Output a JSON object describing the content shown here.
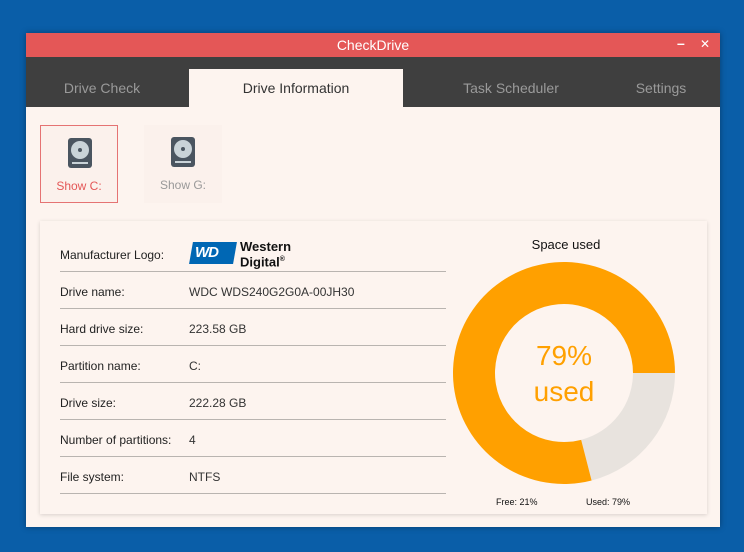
{
  "window": {
    "title": "CheckDrive",
    "minimize_glyph": "–",
    "close_glyph": "✕"
  },
  "tabs": [
    {
      "label": "Drive Check",
      "active": false
    },
    {
      "label": "Drive Information",
      "active": true
    },
    {
      "label": "Task Scheduler",
      "active": false
    },
    {
      "label": "Settings",
      "active": false
    }
  ],
  "drives": [
    {
      "label": "Show C:",
      "selected": true,
      "icon": "hard-drive-icon"
    },
    {
      "label": "Show G:",
      "selected": false,
      "icon": "hard-drive-icon"
    }
  ],
  "info": {
    "manufacturer_label": "Manufacturer Logo:",
    "logo_mark": "WD",
    "logo_line1": "Western",
    "logo_line2": "Digital",
    "logo_reg": "®",
    "rows": [
      {
        "key": "Drive name:",
        "value": "WDC WDS240G2G0A-00JH30"
      },
      {
        "key": "Hard drive size:",
        "value": "223.58 GB"
      },
      {
        "key": "Partition name:",
        "value": "C:"
      },
      {
        "key": "Drive size:",
        "value": "222.28 GB"
      },
      {
        "key": "Number of partitions:",
        "value": "4"
      },
      {
        "key": "File system:",
        "value": "NTFS"
      }
    ]
  },
  "space": {
    "title": "Space used",
    "used_fraction": 0.79,
    "percent_text": "79%",
    "used_text": "used",
    "free_label": "Free: 21%",
    "used_label": "Used: 79%",
    "used_color": "#ffa000",
    "free_color": "#e8e3de"
  }
}
